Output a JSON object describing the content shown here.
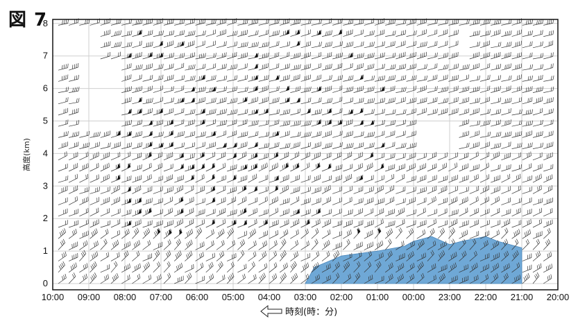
{
  "figure_label": "図 7",
  "chart_data": {
    "type": "wind-barb time-height section",
    "xlabel": "時刻(時：分)",
    "ylabel": "高度(km)",
    "x_ticks": [
      "10:00",
      "09:00",
      "08:00",
      "07:00",
      "06:00",
      "05:00",
      "04:00",
      "03:00",
      "02:00",
      "01:00",
      "00:00",
      "23:00",
      "22:00",
      "21:00",
      "20:00"
    ],
    "y_ticks": [
      "0",
      "1",
      "2",
      "3",
      "4",
      "5",
      "6",
      "7",
      "8"
    ],
    "ylim": [
      0,
      8.2
    ],
    "x_direction": "time decreasing left to right",
    "grid": true,
    "barb_color": "#333333",
    "shaded_color": "#6fa8d6",
    "shaded_region_top_km": [
      {
        "time": "03:00",
        "top": 0.0
      },
      {
        "time": "02:45",
        "top": 0.5
      },
      {
        "time": "02:00",
        "top": 0.85
      },
      {
        "time": "01:00",
        "top": 1.0
      },
      {
        "time": "00:15",
        "top": 1.15
      },
      {
        "time": "00:00",
        "top": 1.3
      },
      {
        "time": "23:30",
        "top": 1.45
      },
      {
        "time": "23:00",
        "top": 1.2
      },
      {
        "time": "22:40",
        "top": 1.3
      },
      {
        "time": "22:00",
        "top": 1.45
      },
      {
        "time": "21:40",
        "top": 1.3
      },
      {
        "time": "21:00",
        "top": 1.1
      },
      {
        "time": "21:00",
        "top": 0.0
      }
    ]
  }
}
